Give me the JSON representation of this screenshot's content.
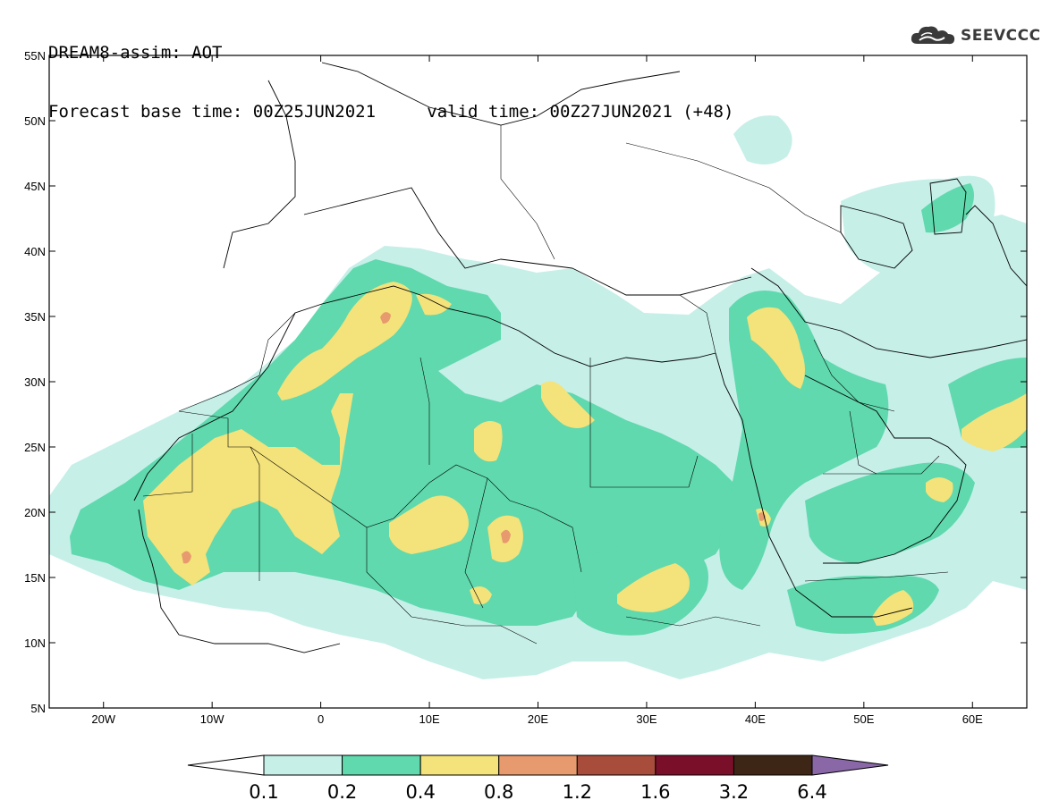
{
  "header": {
    "line1": "DREAM8-assim: AOT",
    "base_label": "Forecast base time: 00Z25JUN2021",
    "valid_label": "valid time: 00Z27JUN2021 (+48)"
  },
  "logo": {
    "text": "SEEVCCC",
    "icon": "cloud-icon"
  },
  "map": {
    "variable": "AOT",
    "lon_range": [
      -25,
      65
    ],
    "lat_range": [
      5,
      55
    ],
    "lat_ticks": [
      {
        "value": 55,
        "label": "55N"
      },
      {
        "value": 50,
        "label": "50N"
      },
      {
        "value": 45,
        "label": "45N"
      },
      {
        "value": 40,
        "label": "40N"
      },
      {
        "value": 35,
        "label": "35N"
      },
      {
        "value": 30,
        "label": "30N"
      },
      {
        "value": 25,
        "label": "25N"
      },
      {
        "value": 20,
        "label": "20N"
      },
      {
        "value": 15,
        "label": "15N"
      },
      {
        "value": 10,
        "label": "10N"
      },
      {
        "value": 5,
        "label": "5N"
      }
    ],
    "lon_ticks": [
      {
        "value": -20,
        "label": "20W"
      },
      {
        "value": -10,
        "label": "10W"
      },
      {
        "value": 0,
        "label": "0"
      },
      {
        "value": 10,
        "label": "10E"
      },
      {
        "value": 20,
        "label": "20E"
      },
      {
        "value": 30,
        "label": "30E"
      },
      {
        "value": 40,
        "label": "40E"
      },
      {
        "value": 50,
        "label": "50E"
      },
      {
        "value": 60,
        "label": "60E"
      }
    ]
  },
  "colorbar": {
    "levels": [
      "0.1",
      "0.2",
      "0.4",
      "0.8",
      "1.2",
      "1.6",
      "3.2",
      "6.4"
    ],
    "colors": [
      "#c6efe8",
      "#5fd9ad",
      "#f4e27a",
      "#e79a6d",
      "#a84d3c",
      "#7a0f2a",
      "#3d2616"
    ],
    "under_color": "#ffffff",
    "over_color": "#8a68a8"
  },
  "colors": {
    "c01": "#c6efe8",
    "c02": "#5fd9ad",
    "c04": "#f4e27a",
    "c08": "#e79a6d"
  }
}
